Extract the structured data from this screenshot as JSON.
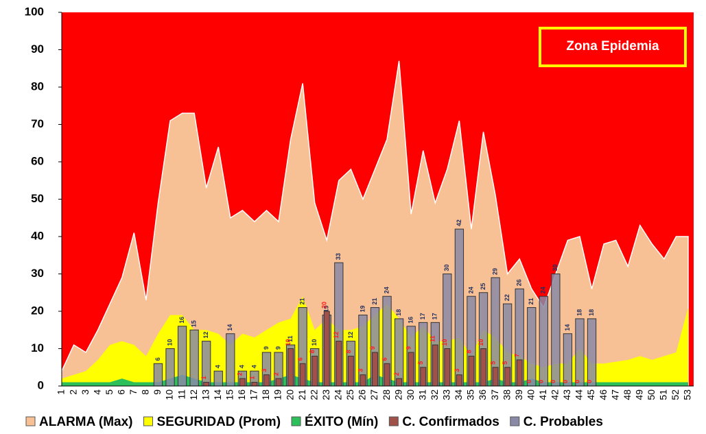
{
  "chart_data": {
    "type": "epidemic-channel",
    "annotation": "Zona Epidemia",
    "categories": [
      "1",
      "2",
      "3",
      "4",
      "5",
      "6",
      "7",
      "8",
      "9",
      "10",
      "11",
      "12",
      "13",
      "14",
      "15",
      "16",
      "17",
      "18",
      "19",
      "20",
      "21",
      "22",
      "23",
      "24",
      "25",
      "26",
      "27",
      "28",
      "29",
      "30",
      "31",
      "32",
      "33",
      "34",
      "35",
      "36",
      "37",
      "38",
      "39",
      "40",
      "41",
      "42",
      "43",
      "44",
      "45",
      "46",
      "47",
      "48",
      "49",
      "50",
      "51",
      "52",
      "53"
    ],
    "ylim": [
      0,
      100
    ],
    "yticks": [
      0,
      10,
      20,
      30,
      40,
      50,
      60,
      70,
      80,
      90,
      100
    ],
    "background_color": "#ff0000",
    "areas": [
      {
        "name": "ALARMA (Max)",
        "color": "#f8c195",
        "values": [
          4,
          11,
          9,
          15,
          22,
          29,
          41,
          23,
          49,
          71,
          73,
          73,
          53,
          64,
          45,
          47,
          44,
          47,
          44,
          66,
          81,
          49,
          39,
          55,
          58,
          50,
          58,
          66,
          87,
          46,
          63,
          49,
          58,
          71,
          42,
          68,
          51,
          30,
          34,
          26,
          21,
          30,
          39,
          40,
          26,
          38,
          39,
          32,
          43,
          38,
          34,
          40,
          40
        ]
      },
      {
        "name": "SEGURIDAD (Prom)",
        "color": "#ffff00",
        "values": [
          2,
          3,
          4,
          7,
          11,
          12,
          11,
          8,
          14,
          19,
          19,
          15,
          15,
          14,
          11,
          14,
          13,
          15,
          17,
          18,
          24,
          15,
          18,
          15,
          15,
          16,
          19,
          22,
          18,
          13,
          16,
          12,
          12,
          13,
          8,
          15,
          13,
          9,
          8,
          6,
          5,
          6,
          6,
          10,
          6,
          6,
          6.5,
          7,
          8,
          7,
          8,
          9,
          21
        ]
      },
      {
        "name": "ÉXITO (Mín)",
        "color": "#2dbf5a",
        "values": [
          1,
          1,
          1,
          1,
          1,
          2,
          1,
          1,
          1,
          2,
          3,
          2,
          1,
          1,
          1,
          1,
          1,
          1,
          2,
          3,
          2,
          1,
          1,
          1,
          1,
          1,
          3,
          2,
          1,
          1,
          1,
          1,
          1,
          1,
          1,
          1,
          2,
          1,
          1,
          2,
          1,
          1,
          1,
          1,
          1,
          1,
          1,
          1,
          1,
          1,
          1,
          1,
          1
        ]
      }
    ],
    "series": [
      {
        "name": "C. Probables",
        "color": "#8a8aa6",
        "label_color": "#1f2f5f",
        "values": [
          null,
          null,
          null,
          null,
          null,
          null,
          null,
          null,
          6,
          10,
          16,
          15,
          12,
          4,
          14,
          4,
          4,
          9,
          9,
          11,
          21,
          10,
          19,
          33,
          12,
          19,
          21,
          24,
          18,
          16,
          17,
          17,
          30,
          42,
          24,
          25,
          29,
          22,
          26,
          21,
          24,
          30,
          14,
          18,
          18,
          null,
          null,
          null,
          null,
          null,
          null,
          null,
          null
        ]
      },
      {
        "name": "C. Confirmados",
        "color": "#a0524a",
        "label_color": "#ff1a1a",
        "values": [
          null,
          null,
          null,
          null,
          null,
          null,
          null,
          null,
          null,
          null,
          null,
          null,
          1,
          null,
          null,
          2,
          1,
          3,
          2,
          10,
          6,
          8,
          20,
          12,
          8,
          3,
          9,
          6,
          2,
          9,
          5,
          11,
          10,
          3,
          8,
          10,
          5,
          5,
          7,
          0,
          0,
          0,
          0,
          0,
          0,
          null,
          null,
          null,
          null,
          null,
          null,
          null,
          null
        ]
      }
    ]
  }
}
